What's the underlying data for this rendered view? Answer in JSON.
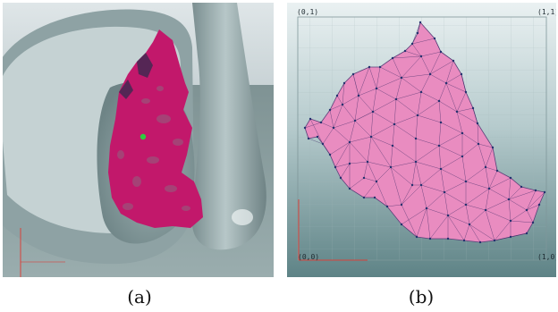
{
  "captions": {
    "a": "(a)",
    "b": "(b)"
  },
  "uv_panel": {
    "corner_labels": {
      "top_left": "(0,1)",
      "top_right": "(1,1)",
      "bottom_left": "(0,0)",
      "bottom_right": "(1,0)"
    }
  },
  "colors": {
    "patch_magenta": "#c2186b",
    "uv_fill": "#e98cc0",
    "mesh_edge": "#3d2a66",
    "vertex": "#23306e",
    "selected_point": "#2ecc40",
    "axis_red": "#d9423a"
  }
}
